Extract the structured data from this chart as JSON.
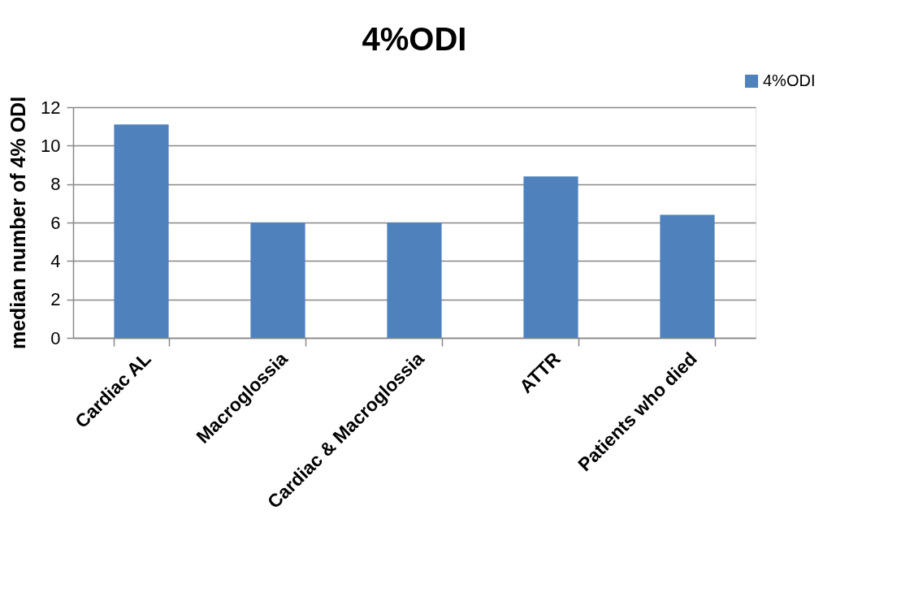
{
  "chart_data": {
    "type": "bar",
    "title": "4%ODI",
    "ylabel": "median number of 4% ODI",
    "categories": [
      "Cardiac AL",
      "Macroglossia",
      "Cardiac & Macroglossia",
      "ATTR",
      "Patients who died"
    ],
    "series": [
      {
        "name": "4%ODI",
        "color": "#4f81bd",
        "values": [
          11.1,
          6.0,
          6.0,
          8.4,
          6.4
        ]
      }
    ],
    "ylim": [
      0,
      12
    ],
    "yticks": [
      0,
      2,
      4,
      6,
      8,
      10,
      12
    ],
    "grid": "y",
    "legend": "top right"
  }
}
